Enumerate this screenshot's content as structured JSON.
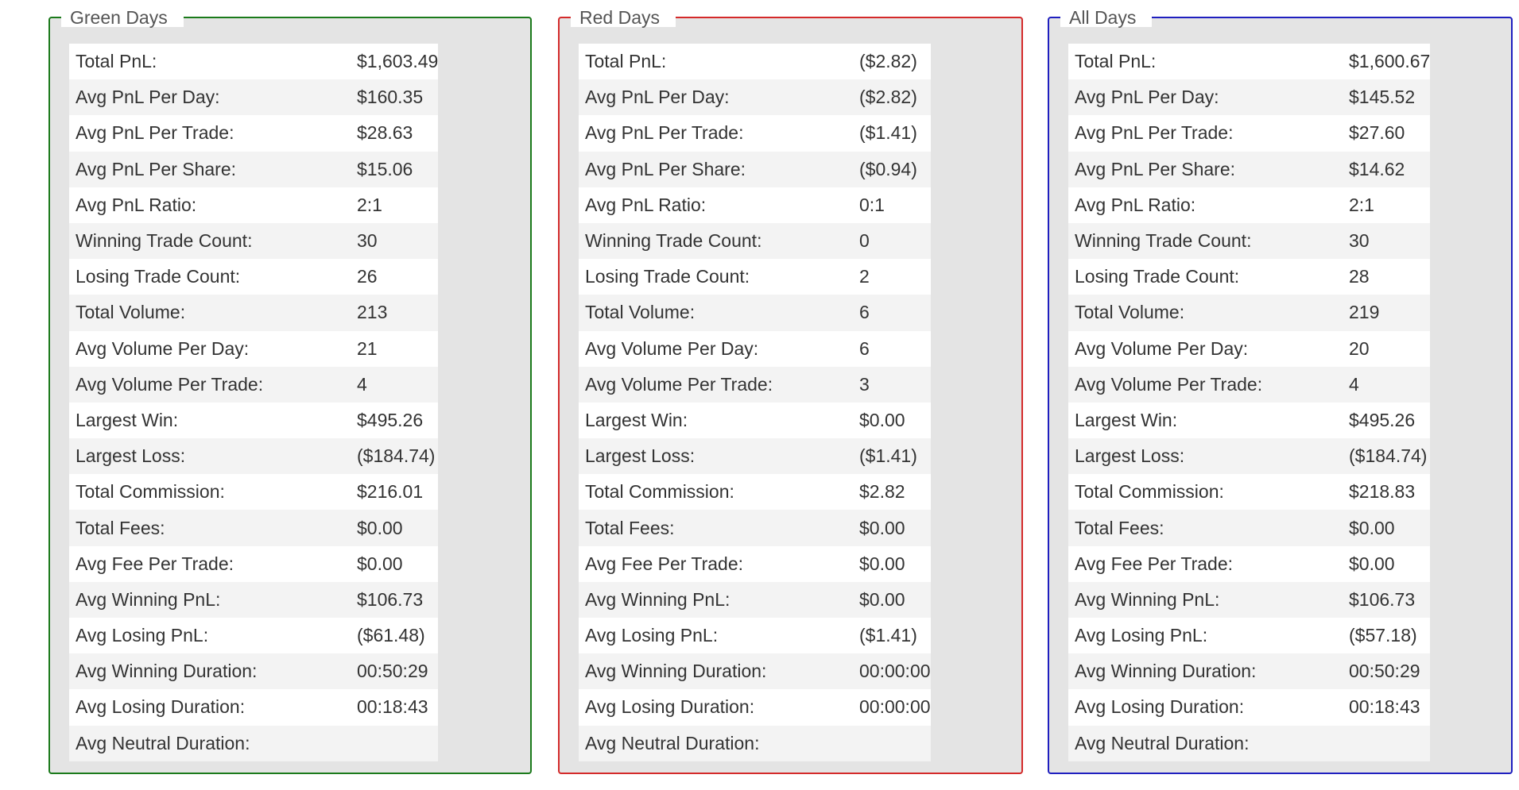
{
  "colors": {
    "green_border": "#1b7a1b",
    "red_border": "#d42a2a",
    "all_border": "#1f1fbf"
  },
  "panels": [
    {
      "id": "green",
      "title": "Green Days",
      "rows": [
        {
          "label": "Total PnL:",
          "value": "$1,603.49"
        },
        {
          "label": "Avg PnL Per Day:",
          "value": "$160.35"
        },
        {
          "label": "Avg PnL Per Trade:",
          "value": "$28.63"
        },
        {
          "label": "Avg PnL Per Share:",
          "value": "$15.06"
        },
        {
          "label": "Avg PnL Ratio:",
          "value": "2:1"
        },
        {
          "label": "Winning Trade Count:",
          "value": "30"
        },
        {
          "label": "Losing Trade Count:",
          "value": "26"
        },
        {
          "label": "Total Volume:",
          "value": "213"
        },
        {
          "label": "Avg Volume Per Day:",
          "value": "21"
        },
        {
          "label": "Avg Volume Per Trade:",
          "value": "4"
        },
        {
          "label": "Largest Win:",
          "value": "$495.26"
        },
        {
          "label": "Largest Loss:",
          "value": "($184.74)"
        },
        {
          "label": "Total Commission:",
          "value": "$216.01"
        },
        {
          "label": "Total Fees:",
          "value": "$0.00"
        },
        {
          "label": "Avg Fee Per Trade:",
          "value": "$0.00"
        },
        {
          "label": "Avg Winning PnL:",
          "value": "$106.73"
        },
        {
          "label": "Avg Losing PnL:",
          "value": "($61.48)"
        },
        {
          "label": "Avg Winning Duration:",
          "value": "00:50:29"
        },
        {
          "label": "Avg Losing Duration:",
          "value": "00:18:43"
        },
        {
          "label": "Avg Neutral Duration:",
          "value": ""
        }
      ]
    },
    {
      "id": "red",
      "title": "Red Days",
      "rows": [
        {
          "label": "Total PnL:",
          "value": "($2.82)"
        },
        {
          "label": "Avg PnL Per Day:",
          "value": "($2.82)"
        },
        {
          "label": "Avg PnL Per Trade:",
          "value": "($1.41)"
        },
        {
          "label": "Avg PnL Per Share:",
          "value": "($0.94)"
        },
        {
          "label": "Avg PnL Ratio:",
          "value": "0:1"
        },
        {
          "label": "Winning Trade Count:",
          "value": "0"
        },
        {
          "label": "Losing Trade Count:",
          "value": "2"
        },
        {
          "label": "Total Volume:",
          "value": "6"
        },
        {
          "label": "Avg Volume Per Day:",
          "value": "6"
        },
        {
          "label": "Avg Volume Per Trade:",
          "value": "3"
        },
        {
          "label": "Largest Win:",
          "value": "$0.00"
        },
        {
          "label": "Largest Loss:",
          "value": "($1.41)"
        },
        {
          "label": "Total Commission:",
          "value": "$2.82"
        },
        {
          "label": "Total Fees:",
          "value": "$0.00"
        },
        {
          "label": "Avg Fee Per Trade:",
          "value": "$0.00"
        },
        {
          "label": "Avg Winning PnL:",
          "value": "$0.00"
        },
        {
          "label": "Avg Losing PnL:",
          "value": "($1.41)"
        },
        {
          "label": "Avg Winning Duration:",
          "value": "00:00:00"
        },
        {
          "label": "Avg Losing Duration:",
          "value": "00:00:00"
        },
        {
          "label": "Avg Neutral Duration:",
          "value": ""
        }
      ]
    },
    {
      "id": "all",
      "title": "All Days",
      "rows": [
        {
          "label": "Total PnL:",
          "value": "$1,600.67"
        },
        {
          "label": "Avg PnL Per Day:",
          "value": "$145.52"
        },
        {
          "label": "Avg PnL Per Trade:",
          "value": "$27.60"
        },
        {
          "label": "Avg PnL Per Share:",
          "value": "$14.62"
        },
        {
          "label": "Avg PnL Ratio:",
          "value": "2:1"
        },
        {
          "label": "Winning Trade Count:",
          "value": "30"
        },
        {
          "label": "Losing Trade Count:",
          "value": "28"
        },
        {
          "label": "Total Volume:",
          "value": "219"
        },
        {
          "label": "Avg Volume Per Day:",
          "value": "20"
        },
        {
          "label": "Avg Volume Per Trade:",
          "value": "4"
        },
        {
          "label": "Largest Win:",
          "value": "$495.26"
        },
        {
          "label": "Largest Loss:",
          "value": "($184.74)"
        },
        {
          "label": "Total Commission:",
          "value": "$218.83"
        },
        {
          "label": "Total Fees:",
          "value": "$0.00"
        },
        {
          "label": "Avg Fee Per Trade:",
          "value": "$0.00"
        },
        {
          "label": "Avg Winning PnL:",
          "value": "$106.73"
        },
        {
          "label": "Avg Losing PnL:",
          "value": "($57.18)"
        },
        {
          "label": "Avg Winning Duration:",
          "value": "00:50:29"
        },
        {
          "label": "Avg Losing Duration:",
          "value": "00:18:43"
        },
        {
          "label": "Avg Neutral Duration:",
          "value": ""
        }
      ]
    }
  ]
}
